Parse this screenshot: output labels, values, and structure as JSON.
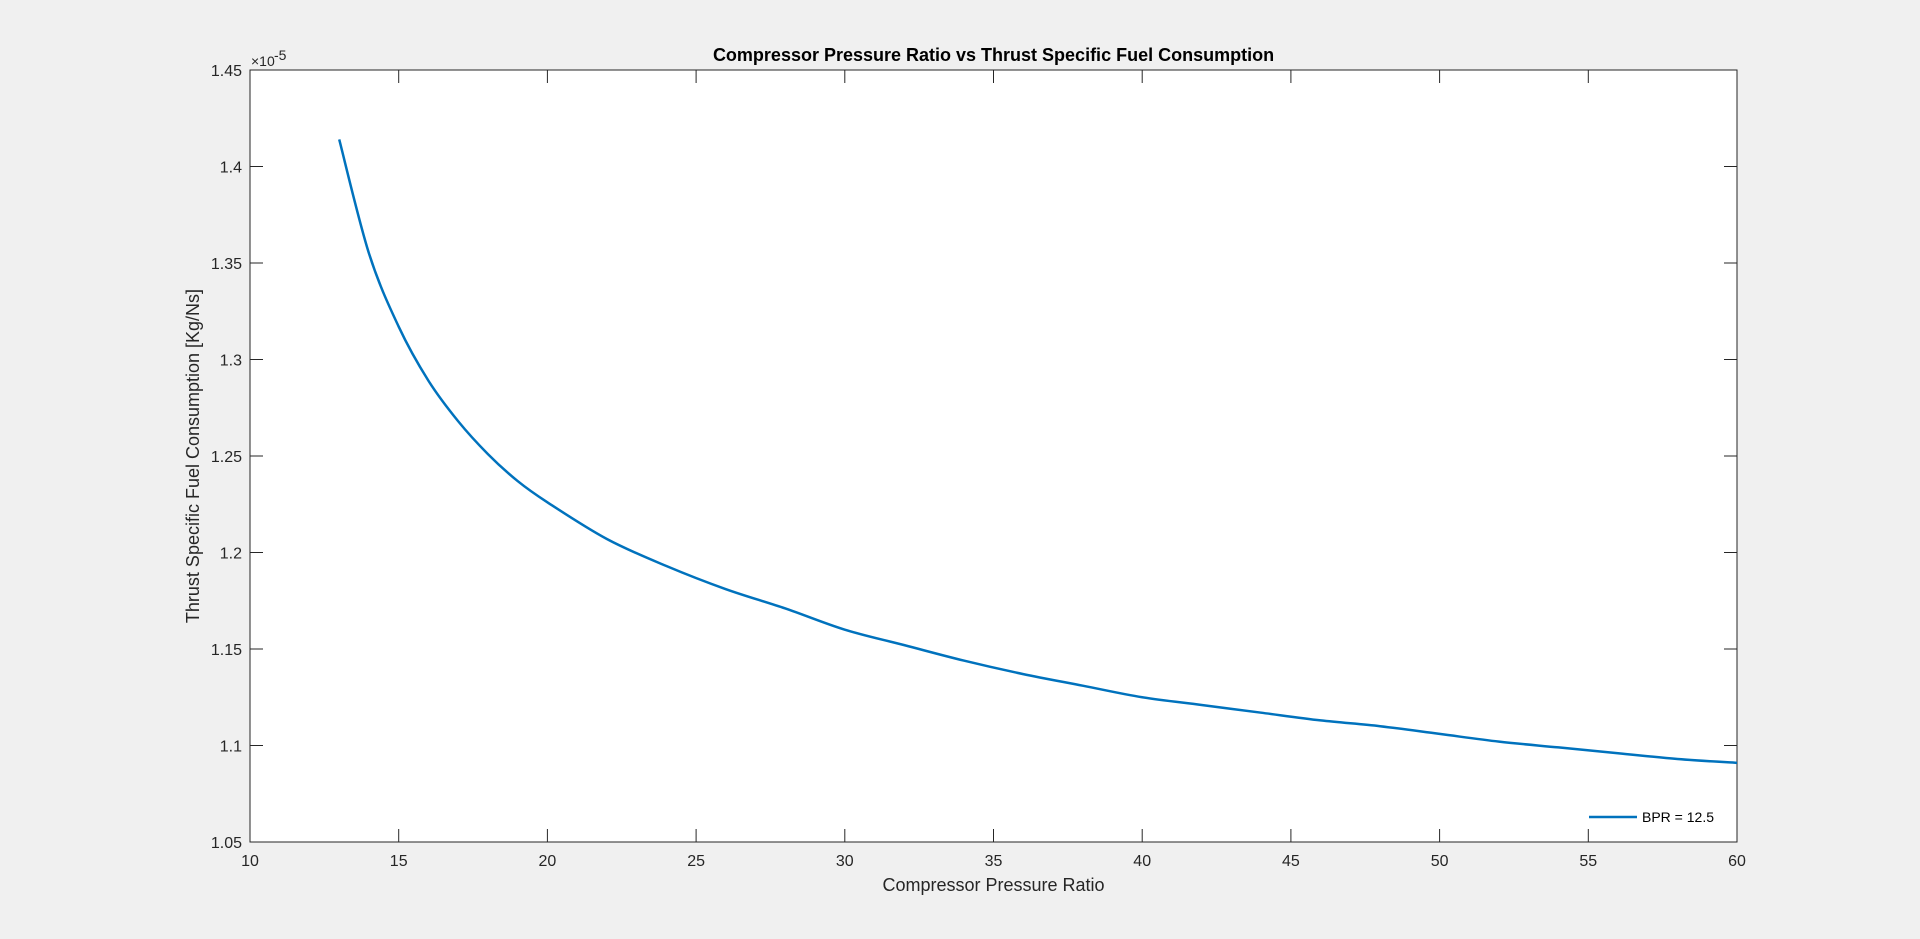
{
  "chart_data": {
    "type": "line",
    "title": "Compressor Pressure Ratio vs Thrust Specific Fuel Consumption",
    "xlabel": "Compressor Pressure Ratio",
    "ylabel": "Thrust Specific Fuel Consumption [Kg/Ns]",
    "xlim": [
      10,
      60
    ],
    "ylim": [
      1.05,
      1.45
    ],
    "y_exponent_label": "×10",
    "y_exponent_power": "-5",
    "x_ticks": [
      "10",
      "15",
      "20",
      "25",
      "30",
      "35",
      "40",
      "45",
      "50",
      "55",
      "60"
    ],
    "y_ticks": [
      "1.05",
      "1.1",
      "1.15",
      "1.2",
      "1.25",
      "1.3",
      "1.35",
      "1.4",
      "1.45"
    ],
    "grid": false,
    "legend_position": "bottom-right",
    "series": [
      {
        "name": "BPR = 12.5",
        "color": "#0072bd",
        "x": [
          13,
          14,
          15,
          16,
          17,
          18,
          19,
          20,
          22,
          24,
          26,
          28,
          30,
          32,
          34,
          36,
          38,
          40,
          42,
          44,
          46,
          48,
          50,
          52,
          54,
          56,
          58,
          60
        ],
        "y": [
          1.414,
          1.355,
          1.317,
          1.289,
          1.268,
          1.251,
          1.237,
          1.226,
          1.207,
          1.193,
          1.181,
          1.171,
          1.16,
          1.152,
          1.144,
          1.137,
          1.131,
          1.125,
          1.121,
          1.117,
          1.113,
          1.11,
          1.106,
          1.102,
          1.099,
          1.096,
          1.093,
          1.091
        ]
      }
    ]
  }
}
